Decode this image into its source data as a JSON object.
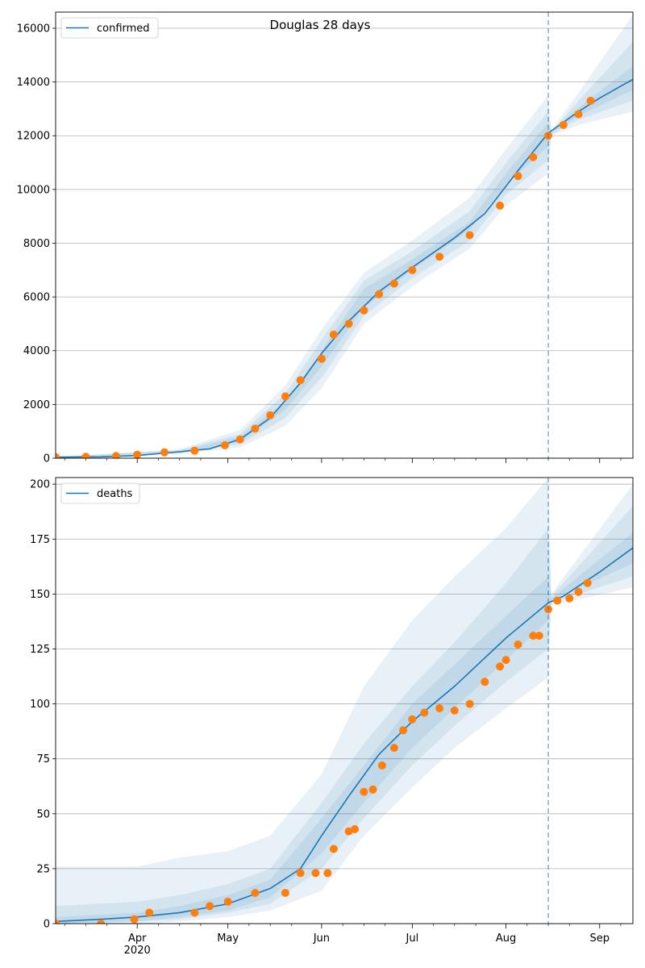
{
  "figure": {
    "title": "Douglas 28 days"
  },
  "colors": {
    "line": "#1f77b4",
    "points": "#ff7f0e",
    "band": "#1f77b4",
    "grid": "#b0b0b0",
    "vline": "#1f77b4"
  },
  "x_axis": {
    "tick_labels": [
      "Apr",
      "May",
      "Jun",
      "Jul",
      "Aug",
      "Sep"
    ],
    "year_label": "2020",
    "range": [
      "2020-03-05",
      "2020-09-12"
    ],
    "forecast_start": "2020-08-15"
  },
  "chart_data": [
    {
      "type": "line",
      "panel": "top",
      "legend": "confirmed",
      "legend_position": "top-left",
      "grid": "horizontal",
      "ylim": [
        0,
        16600
      ],
      "yticks": [
        0,
        2000,
        4000,
        6000,
        8000,
        10000,
        12000,
        14000,
        16000
      ],
      "forecast_start": "2020-08-15",
      "model_line": {
        "x": [
          "2020-03-05",
          "2020-03-20",
          "2020-04-01",
          "2020-04-15",
          "2020-04-25",
          "2020-05-05",
          "2020-05-15",
          "2020-05-25",
          "2020-06-01",
          "2020-06-10",
          "2020-06-20",
          "2020-07-01",
          "2020-07-15",
          "2020-07-25",
          "2020-08-05",
          "2020-08-15",
          "2020-08-20",
          "2020-08-25",
          "2020-09-01",
          "2020-09-12"
        ],
        "y": [
          40,
          50,
          100,
          240,
          350,
          700,
          1500,
          2800,
          3900,
          5100,
          6200,
          7100,
          8200,
          9100,
          10700,
          12100,
          12500,
          12900,
          13400,
          14100
        ]
      },
      "bands": [
        {
          "x": [
            "2020-03-05",
            "2020-04-15",
            "2020-05-05",
            "2020-05-20",
            "2020-06-01",
            "2020-06-15",
            "2020-07-01",
            "2020-07-20",
            "2020-08-01",
            "2020-08-15",
            "2020-08-16",
            "2020-08-25",
            "2020-09-12"
          ],
          "lower": [
            30,
            150,
            400,
            1200,
            2600,
            5000,
            6400,
            7800,
            9400,
            10600,
            12000,
            12400,
            12900
          ],
          "upper": [
            50,
            330,
            1050,
            2700,
            4800,
            6900,
            8100,
            9700,
            11500,
            13500,
            12200,
            13600,
            16500
          ]
        },
        {
          "x": [
            "2020-03-05",
            "2020-04-15",
            "2020-05-05",
            "2020-05-20",
            "2020-06-01",
            "2020-06-15",
            "2020-07-01",
            "2020-07-20",
            "2020-08-01",
            "2020-08-15",
            "2020-08-16",
            "2020-08-25",
            "2020-09-12"
          ],
          "lower": [
            34,
            180,
            520,
            1500,
            3000,
            5300,
            6700,
            8100,
            9800,
            11100,
            12050,
            12600,
            13300
          ],
          "upper": [
            46,
            300,
            900,
            2400,
            4400,
            6600,
            7700,
            9200,
            11000,
            12900,
            12150,
            13300,
            15500
          ]
        },
        {
          "x": [
            "2020-03-05",
            "2020-04-15",
            "2020-05-05",
            "2020-05-20",
            "2020-06-01",
            "2020-06-15",
            "2020-07-01",
            "2020-07-20",
            "2020-08-01",
            "2020-08-15",
            "2020-08-16",
            "2020-08-25",
            "2020-09-12"
          ],
          "lower": [
            37,
            210,
            600,
            1800,
            3400,
            5600,
            7000,
            8500,
            10200,
            11600,
            12080,
            12750,
            13700
          ],
          "upper": [
            43,
            270,
            800,
            2100,
            4000,
            6300,
            7400,
            8800,
            10600,
            12500,
            12120,
            13050,
            14600
          ]
        }
      ],
      "points": {
        "x": [
          "2020-03-05",
          "2020-03-15",
          "2020-03-25",
          "2020-04-01",
          "2020-04-10",
          "2020-04-20",
          "2020-04-30",
          "2020-05-05",
          "2020-05-10",
          "2020-05-15",
          "2020-05-20",
          "2020-05-25",
          "2020-06-01",
          "2020-06-05",
          "2020-06-10",
          "2020-06-15",
          "2020-06-20",
          "2020-06-25",
          "2020-07-01",
          "2020-07-10",
          "2020-07-20",
          "2020-07-30",
          "2020-08-05",
          "2020-08-10",
          "2020-08-15",
          "2020-08-20",
          "2020-08-25",
          "2020-08-29"
        ],
        "y": [
          40,
          50,
          80,
          130,
          220,
          280,
          480,
          700,
          1100,
          1600,
          2300,
          2900,
          3700,
          4600,
          5000,
          5500,
          6100,
          6500,
          7000,
          7500,
          8300,
          9400,
          10500,
          11200,
          12000,
          12400,
          12800,
          13300
        ]
      }
    },
    {
      "type": "line",
      "panel": "bottom",
      "legend": "deaths",
      "legend_position": "top-left",
      "grid": "horizontal",
      "ylim": [
        0,
        203
      ],
      "yticks": [
        0,
        25,
        50,
        75,
        100,
        125,
        150,
        175,
        200
      ],
      "forecast_start": "2020-08-15",
      "model_line": {
        "x": [
          "2020-03-05",
          "2020-03-20",
          "2020-04-01",
          "2020-04-15",
          "2020-05-01",
          "2020-05-15",
          "2020-05-25",
          "2020-06-01",
          "2020-06-10",
          "2020-06-20",
          "2020-07-01",
          "2020-07-15",
          "2020-08-01",
          "2020-08-15",
          "2020-08-20",
          "2020-09-01",
          "2020-09-12"
        ],
        "y": [
          1,
          2,
          3,
          5,
          9,
          16,
          25,
          40,
          58,
          77,
          92,
          108,
          130,
          146,
          149,
          160,
          171
        ]
      },
      "bands": [
        {
          "x": [
            "2020-03-05",
            "2020-04-01",
            "2020-04-15",
            "2020-05-01",
            "2020-05-15",
            "2020-06-01",
            "2020-06-15",
            "2020-07-01",
            "2020-07-15",
            "2020-08-01",
            "2020-08-15",
            "2020-08-16",
            "2020-09-12"
          ],
          "lower": [
            0,
            0,
            1,
            3,
            6,
            15,
            40,
            62,
            80,
            98,
            112,
            145,
            153
          ],
          "upper": [
            26,
            26,
            30,
            33,
            40,
            68,
            108,
            138,
            158,
            180,
            203,
            150,
            200
          ]
        },
        {
          "x": [
            "2020-03-05",
            "2020-04-01",
            "2020-04-15",
            "2020-05-01",
            "2020-05-15",
            "2020-06-01",
            "2020-06-15",
            "2020-07-01",
            "2020-07-15",
            "2020-08-01",
            "2020-08-15",
            "2020-08-16",
            "2020-09-12"
          ],
          "lower": [
            0,
            1,
            2,
            5,
            9,
            25,
            48,
            72,
            90,
            110,
            125,
            146,
            158
          ],
          "upper": [
            8,
            10,
            13,
            18,
            25,
            55,
            82,
            108,
            128,
            155,
            180,
            149,
            190
          ]
        },
        {
          "x": [
            "2020-03-05",
            "2020-04-01",
            "2020-04-15",
            "2020-05-01",
            "2020-05-15",
            "2020-06-01",
            "2020-06-15",
            "2020-07-01",
            "2020-07-15",
            "2020-08-01",
            "2020-08-15",
            "2020-08-16",
            "2020-09-12"
          ],
          "lower": [
            0,
            1,
            3,
            6,
            12,
            32,
            55,
            80,
            98,
            120,
            138,
            147,
            164
          ],
          "upper": [
            3,
            5,
            8,
            13,
            20,
            48,
            72,
            100,
            118,
            140,
            158,
            148,
            178
          ]
        }
      ],
      "points": {
        "x": [
          "2020-03-05",
          "2020-03-20",
          "2020-03-31",
          "2020-04-05",
          "2020-04-20",
          "2020-04-25",
          "2020-05-01",
          "2020-05-10",
          "2020-05-20",
          "2020-05-25",
          "2020-05-30",
          "2020-06-03",
          "2020-06-05",
          "2020-06-10",
          "2020-06-12",
          "2020-06-15",
          "2020-06-18",
          "2020-06-21",
          "2020-06-25",
          "2020-06-28",
          "2020-07-01",
          "2020-07-05",
          "2020-07-10",
          "2020-07-15",
          "2020-07-20",
          "2020-07-25",
          "2020-07-30",
          "2020-08-01",
          "2020-08-05",
          "2020-08-10",
          "2020-08-12",
          "2020-08-15",
          "2020-08-18",
          "2020-08-22",
          "2020-08-25",
          "2020-08-28"
        ],
        "y": [
          0,
          0,
          2,
          5,
          5,
          8,
          10,
          14,
          14,
          23,
          23,
          23,
          34,
          42,
          43,
          60,
          61,
          72,
          80,
          88,
          93,
          96,
          98,
          97,
          100,
          110,
          117,
          120,
          127,
          131,
          131,
          143,
          147,
          148,
          151,
          155
        ]
      }
    }
  ]
}
